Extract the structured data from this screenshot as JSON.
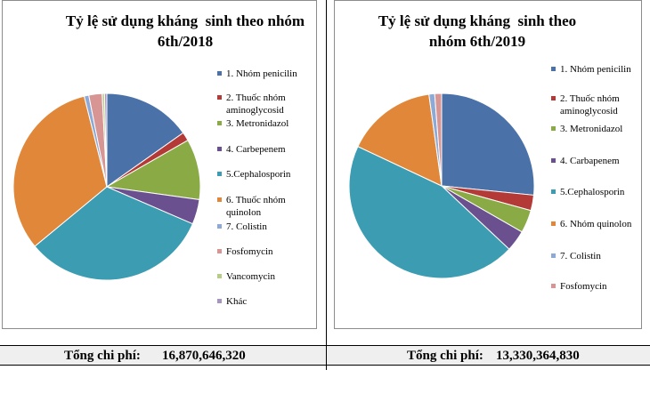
{
  "colors": {
    "panel_border": "#8c8c8c",
    "footer_bg": "#efefef"
  },
  "chart_data": [
    {
      "type": "pie",
      "title": "Tỷ lệ sử dụng kháng  sinh theo nhóm\n6th/2018",
      "categories": [
        "1. Nhóm penicilin",
        "2. Thuốc nhóm\naminoglycosid",
        "3. Metronidazol",
        "4. Carbepenem",
        "5.Cephalosporin",
        "6. Thuốc nhóm\nquinolon",
        "7. Colistin",
        "Fosfomycin",
        "Vancomycin",
        "Khác"
      ],
      "values": [
        15.2,
        1.5,
        10.5,
        4.3,
        32.5,
        32.1,
        0.8,
        2.3,
        0.4,
        0.4
      ],
      "colors": [
        "#4A72A8",
        "#B33A37",
        "#8AAA46",
        "#6B5090",
        "#3B9CB2",
        "#E0873A",
        "#8DA9D6",
        "#D79594",
        "#B6CD85",
        "#A596BF"
      ],
      "legend_position": "right",
      "total_label": "Tổng chi phí:",
      "total_value": "16,870,646,320"
    },
    {
      "type": "pie",
      "title": "Tỷ lệ sử dụng kháng  sinh theo\nnhóm 6th/2019",
      "categories": [
        "1. Nhóm penicilin",
        "2. Thuốc nhóm\naminoglycosid",
        "3. Metronidazol",
        "4. Carbapenem",
        "5.Cephalosporin",
        "6. Nhóm quinolon",
        "7. Colistin",
        "Fosfomycin"
      ],
      "values": [
        26.6,
        2.7,
        4.0,
        3.7,
        45.0,
        15.8,
        1.0,
        1.2
      ],
      "colors": [
        "#4A72A8",
        "#B33A37",
        "#8AAA46",
        "#6B5090",
        "#3B9CB2",
        "#E0873A",
        "#8DA9D6",
        "#D79594"
      ],
      "legend_position": "right",
      "total_label": "Tổng chi phí:",
      "total_value": "13,330,364,830"
    }
  ]
}
